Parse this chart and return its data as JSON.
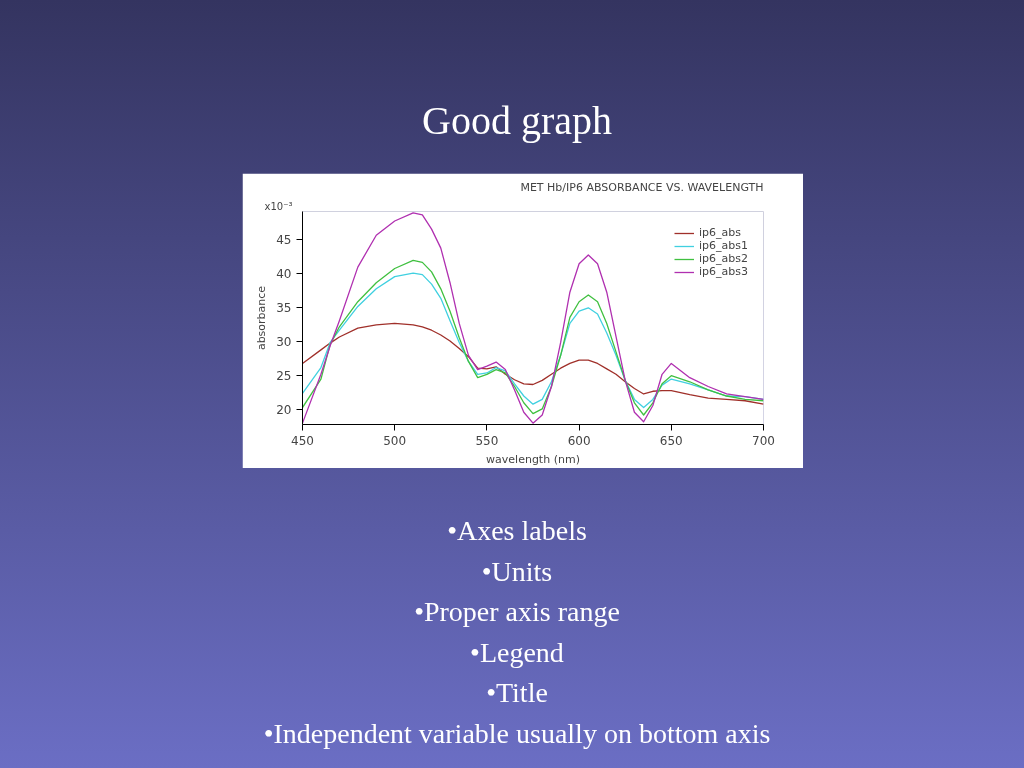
{
  "chart_data": {
    "type": "line",
    "title": "MET Hb/IP6 ABSORBANCE VS. WAVELENGTH",
    "xlabel": "wavelength (nm)",
    "ylabel": "absorbance",
    "annotations": [
      "Good graph",
      "x10⁻³",
      "•Axes labels",
      "•Units",
      "•Proper axis range",
      "•Legend",
      "•Title",
      "•Independent variable usually on bottom axis"
    ],
    "x": [
      450,
      460,
      465,
      470,
      480,
      490,
      500,
      510,
      515,
      520,
      525,
      530,
      535,
      540,
      545,
      550,
      555,
      560,
      565,
      570,
      575,
      580,
      585,
      590,
      595,
      600,
      605,
      610,
      615,
      620,
      625,
      630,
      635,
      640,
      645,
      650,
      660,
      670,
      680,
      690,
      700
    ],
    "series": [
      {
        "name": "ip6_abs",
        "color": "#a0302a",
        "values": [
          26.8,
          28.8,
          29.8,
          30.7,
          32.0,
          32.5,
          32.7,
          32.5,
          32.2,
          31.7,
          31.0,
          30.1,
          29.0,
          27.8,
          26.1,
          26.0,
          26.3,
          25.2,
          24.4,
          23.8,
          23.7,
          24.3,
          25.2,
          26.1,
          26.8,
          27.3,
          27.3,
          26.8,
          26.0,
          25.2,
          24.1,
          23.1,
          22.3,
          22.7,
          22.8,
          22.8,
          22.2,
          21.7,
          21.5,
          21.3,
          20.8
        ]
      },
      {
        "name": "ip6_abs1",
        "color": "#40d0e0",
        "values": [
          22.4,
          26.2,
          29.9,
          31.7,
          35.2,
          37.8,
          39.6,
          40.1,
          39.9,
          38.5,
          36.4,
          33.1,
          29.9,
          27.1,
          25.2,
          25.4,
          26.2,
          25.7,
          23.8,
          22.0,
          20.8,
          21.5,
          24.1,
          28.0,
          32.7,
          34.5,
          35.0,
          34.1,
          31.3,
          28.0,
          24.3,
          21.5,
          20.3,
          21.5,
          23.6,
          24.5,
          23.8,
          22.9,
          22.0,
          21.9,
          21.5
        ]
      },
      {
        "name": "ip6_abs2",
        "color": "#40c040",
        "values": [
          20.3,
          24.5,
          29.6,
          32.2,
          35.9,
          38.7,
          40.8,
          42.0,
          41.7,
          40.3,
          37.8,
          34.5,
          30.6,
          27.1,
          24.7,
          25.2,
          25.9,
          25.4,
          23.4,
          21.0,
          19.4,
          20.1,
          23.4,
          28.0,
          33.6,
          35.9,
          36.9,
          35.9,
          32.7,
          28.5,
          24.3,
          21.0,
          19.2,
          21.0,
          23.8,
          25.0,
          24.1,
          22.9,
          22.0,
          21.5,
          21.3
        ]
      },
      {
        "name": "ip6_abs3",
        "color": "#b030b0",
        "values": [
          18.0,
          25.2,
          29.4,
          33.1,
          41.0,
          45.7,
          47.8,
          49.0,
          48.7,
          46.6,
          43.8,
          38.7,
          32.7,
          28.0,
          25.9,
          26.4,
          27.0,
          25.9,
          22.9,
          19.6,
          18.0,
          19.2,
          23.4,
          29.9,
          37.3,
          41.5,
          42.8,
          41.5,
          37.3,
          30.8,
          24.3,
          19.6,
          18.2,
          20.6,
          25.2,
          26.8,
          24.7,
          23.4,
          22.3,
          21.9,
          21.5
        ]
      }
    ],
    "xlim": [
      450,
      700
    ],
    "xticks": [
      450,
      500,
      550,
      600,
      650,
      700
    ],
    "ylim": [
      17.8,
      49.2
    ],
    "yticks": [
      20,
      25,
      30,
      35,
      40,
      45
    ],
    "grid": false,
    "legend": "top right",
    "marker": "none",
    "line_style": "solid"
  }
}
